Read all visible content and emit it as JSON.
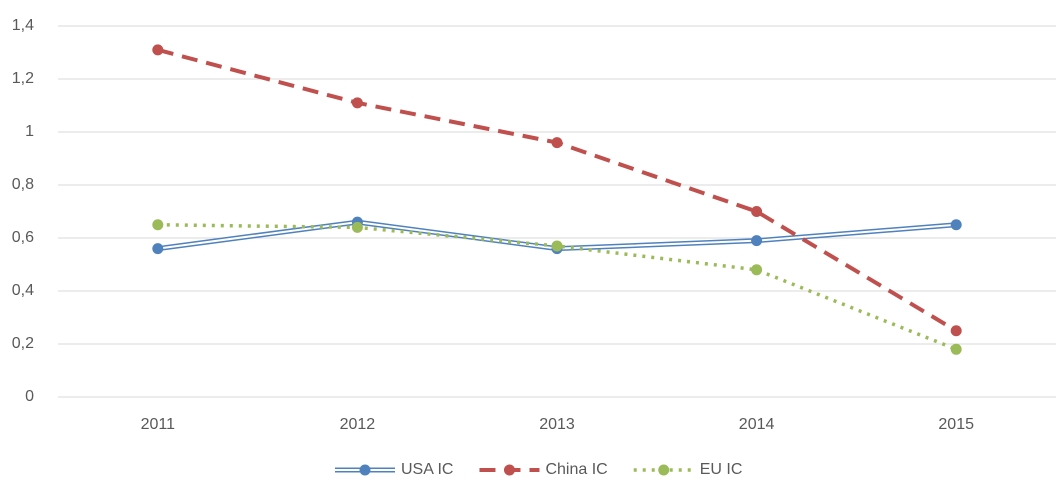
{
  "chart_data": {
    "type": "line",
    "categories": [
      "2011",
      "2012",
      "2013",
      "2014",
      "2015"
    ],
    "series": [
      {
        "name": "USA IC",
        "color": "#4f81bd",
        "style": "double",
        "values": [
          0.56,
          0.66,
          0.56,
          0.59,
          0.65
        ]
      },
      {
        "name": "China IC",
        "color": "#c0504d",
        "style": "dashed",
        "values": [
          1.31,
          1.11,
          0.96,
          0.7,
          0.25
        ]
      },
      {
        "name": "EU IC",
        "color": "#9bbb59",
        "style": "dotted",
        "values": [
          0.65,
          0.64,
          0.57,
          0.48,
          0.18
        ]
      }
    ],
    "ylim": [
      0,
      1.4
    ],
    "yticks": [
      0,
      {
        "value": 0.2,
        "label": "0,2"
      },
      {
        "value": 0.4,
        "label": "0,4"
      },
      {
        "value": 0.6,
        "label": "0,6"
      },
      {
        "value": 0.8,
        "label": "0,8"
      },
      1,
      {
        "value": 1.2,
        "label": "1,2"
      },
      {
        "value": 1.4,
        "label": "1,4"
      }
    ],
    "grid": true,
    "legend": "bottom"
  }
}
